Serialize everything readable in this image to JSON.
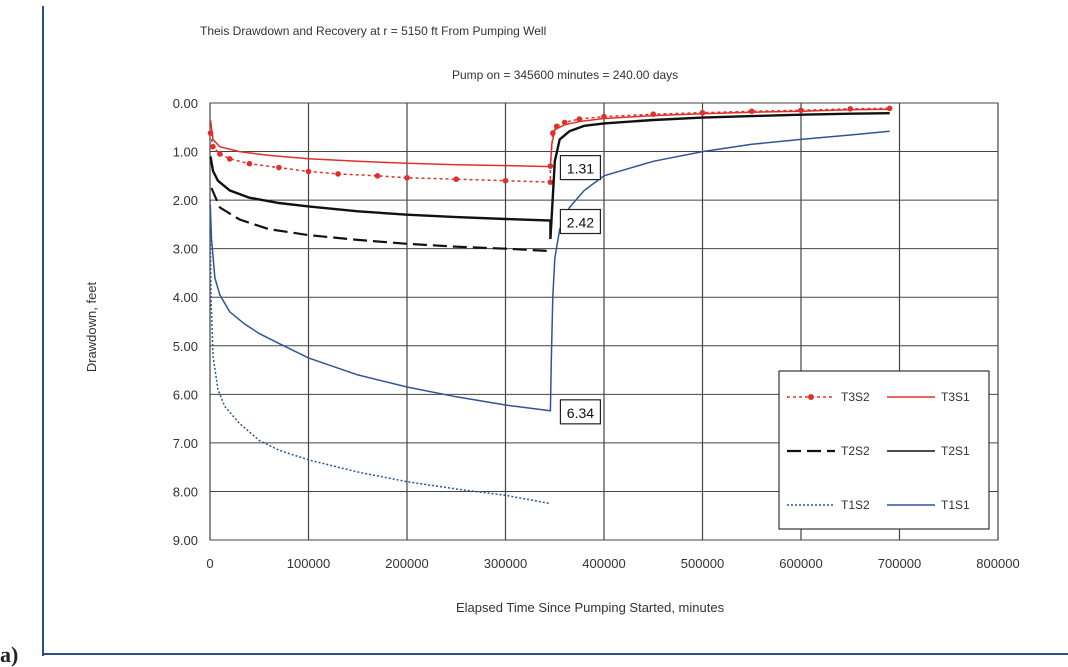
{
  "chart_data": {
    "type": "line",
    "title": "Theis Drawdown and Recovery at r = 5150 ft From Pumping Well",
    "subtitle": "Pump on = 345600 minutes = 240.00 days",
    "xlabel": "Elapsed Time Since Pumping Started, minutes",
    "ylabel": "Drawdown, feet",
    "xlim": [
      0,
      800000
    ],
    "ylim": [
      0,
      9
    ],
    "y_inverted": true,
    "grid": true,
    "legend_position": "lower-right",
    "x_ticks": [
      "0",
      "100000",
      "200000",
      "300000",
      "400000",
      "500000",
      "600000",
      "700000",
      "800000"
    ],
    "y_ticks": [
      "0.00",
      "1.00",
      "2.00",
      "3.00",
      "4.00",
      "5.00",
      "6.00",
      "7.00",
      "8.00",
      "9.00"
    ],
    "series": [
      {
        "name": "T3S2",
        "color": "#e0302a",
        "style": "dotted-markers",
        "points": [
          [
            500,
            0.62
          ],
          [
            3000,
            0.9
          ],
          [
            10000,
            1.05
          ],
          [
            20000,
            1.15
          ],
          [
            40000,
            1.25
          ],
          [
            70000,
            1.33
          ],
          [
            100000,
            1.41
          ],
          [
            130000,
            1.46
          ],
          [
            170000,
            1.5
          ],
          [
            200000,
            1.54
          ],
          [
            250000,
            1.57
          ],
          [
            300000,
            1.6
          ],
          [
            345600,
            1.63
          ],
          [
            345600,
            1.3
          ],
          [
            348000,
            0.62
          ],
          [
            352000,
            0.48
          ],
          [
            360000,
            0.4
          ],
          [
            375000,
            0.33
          ],
          [
            400000,
            0.28
          ],
          [
            450000,
            0.23
          ],
          [
            500000,
            0.2
          ],
          [
            550000,
            0.17
          ],
          [
            600000,
            0.15
          ],
          [
            650000,
            0.12
          ],
          [
            690000,
            0.11
          ]
        ]
      },
      {
        "name": "T3S1",
        "color": "#e0302a",
        "style": "solid",
        "points": [
          [
            500,
            0.35
          ],
          [
            3000,
            0.75
          ],
          [
            10000,
            0.9
          ],
          [
            30000,
            1.0
          ],
          [
            60000,
            1.08
          ],
          [
            100000,
            1.15
          ],
          [
            150000,
            1.2
          ],
          [
            200000,
            1.24
          ],
          [
            250000,
            1.27
          ],
          [
            300000,
            1.29
          ],
          [
            345600,
            1.31
          ],
          [
            347000,
            0.85
          ],
          [
            350000,
            0.55
          ],
          [
            360000,
            0.45
          ],
          [
            375000,
            0.38
          ],
          [
            400000,
            0.32
          ],
          [
            450000,
            0.26
          ],
          [
            500000,
            0.22
          ],
          [
            550000,
            0.19
          ],
          [
            600000,
            0.17
          ],
          [
            650000,
            0.14
          ],
          [
            690000,
            0.13
          ]
        ]
      },
      {
        "name": "T2S2",
        "color": "#111111",
        "style": "dashed",
        "points": [
          [
            1500,
            1.75
          ],
          [
            10000,
            2.15
          ],
          [
            30000,
            2.4
          ],
          [
            60000,
            2.6
          ],
          [
            100000,
            2.72
          ],
          [
            150000,
            2.82
          ],
          [
            200000,
            2.9
          ],
          [
            250000,
            2.96
          ],
          [
            300000,
            3.0
          ],
          [
            345600,
            3.05
          ]
        ]
      },
      {
        "name": "T2S1",
        "color": "#111111",
        "style": "solid",
        "points": [
          [
            500,
            1.1
          ],
          [
            3000,
            1.4
          ],
          [
            8000,
            1.6
          ],
          [
            20000,
            1.8
          ],
          [
            40000,
            1.95
          ],
          [
            70000,
            2.06
          ],
          [
            100000,
            2.13
          ],
          [
            150000,
            2.23
          ],
          [
            200000,
            2.3
          ],
          [
            250000,
            2.35
          ],
          [
            300000,
            2.39
          ],
          [
            345600,
            2.42
          ],
          [
            345600,
            2.8
          ],
          [
            347000,
            2.3
          ],
          [
            350000,
            1.2
          ],
          [
            355000,
            0.75
          ],
          [
            365000,
            0.58
          ],
          [
            380000,
            0.47
          ],
          [
            400000,
            0.42
          ],
          [
            450000,
            0.35
          ],
          [
            500000,
            0.3
          ],
          [
            550000,
            0.27
          ],
          [
            600000,
            0.24
          ],
          [
            650000,
            0.22
          ],
          [
            690000,
            0.21
          ]
        ]
      },
      {
        "name": "T1S2",
        "color": "#2f5597",
        "style": "dotted",
        "points": [
          [
            100,
            2.0
          ],
          [
            1000,
            4.0
          ],
          [
            3000,
            5.2
          ],
          [
            8000,
            5.9
          ],
          [
            15000,
            6.25
          ],
          [
            30000,
            6.6
          ],
          [
            50000,
            6.95
          ],
          [
            70000,
            7.15
          ],
          [
            100000,
            7.35
          ],
          [
            150000,
            7.6
          ],
          [
            200000,
            7.8
          ],
          [
            250000,
            7.95
          ],
          [
            300000,
            8.08
          ],
          [
            345600,
            8.25
          ]
        ]
      },
      {
        "name": "T1S1",
        "color": "#2f5597",
        "style": "solid",
        "points": [
          [
            300,
            2.1
          ],
          [
            1500,
            2.8
          ],
          [
            5000,
            3.6
          ],
          [
            10000,
            3.95
          ],
          [
            20000,
            4.3
          ],
          [
            35000,
            4.55
          ],
          [
            50000,
            4.75
          ],
          [
            70000,
            4.95
          ],
          [
            100000,
            5.25
          ],
          [
            150000,
            5.6
          ],
          [
            200000,
            5.85
          ],
          [
            250000,
            6.05
          ],
          [
            300000,
            6.22
          ],
          [
            345600,
            6.34
          ],
          [
            346500,
            5.3
          ],
          [
            348000,
            4.0
          ],
          [
            350000,
            3.2
          ],
          [
            355000,
            2.6
          ],
          [
            365000,
            2.15
          ],
          [
            380000,
            1.8
          ],
          [
            400000,
            1.5
          ],
          [
            450000,
            1.2
          ],
          [
            500000,
            1.0
          ],
          [
            550000,
            0.85
          ],
          [
            600000,
            0.75
          ],
          [
            650000,
            0.66
          ],
          [
            690000,
            0.58
          ]
        ]
      }
    ],
    "annotations": [
      {
        "text": "1.31",
        "x": 345600,
        "y": 1.31
      },
      {
        "text": "2.42",
        "x": 345600,
        "y": 2.42
      },
      {
        "text": "6.34",
        "x": 345600,
        "y": 6.34
      }
    ],
    "legend_rows": [
      [
        "T3S2",
        "T3S1"
      ],
      [
        "T2S2",
        "T2S1"
      ],
      [
        "T1S2",
        "T1S1"
      ]
    ]
  },
  "panel_label": "a)"
}
